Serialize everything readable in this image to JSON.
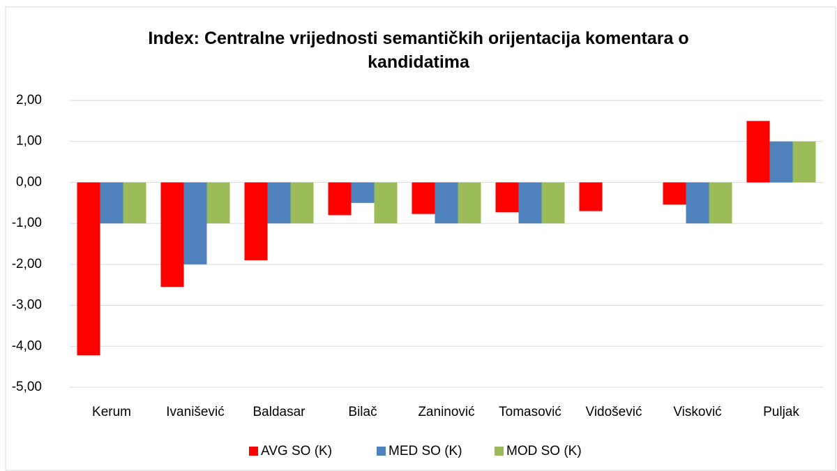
{
  "chart_data": {
    "type": "bar",
    "title": "Index: Centralne vrijednosti semantičkih orijentacija komentara o kandidatima",
    "categories": [
      "Kerum",
      "Ivanišević",
      "Baldasar",
      "Bilač",
      "Zaninović",
      "Tomasović",
      "Vidošević",
      "Visković",
      "Puljak"
    ],
    "series": [
      {
        "name": "AVG SO (K)",
        "color": "#ff0000",
        "values": [
          -4.22,
          -2.55,
          -1.9,
          -0.8,
          -0.77,
          -0.73,
          -0.7,
          -0.54,
          1.5
        ]
      },
      {
        "name": "MED SO (K)",
        "color": "#4f81bd",
        "values": [
          -1,
          -2,
          -1,
          -0.5,
          -1,
          -1,
          0,
          -1,
          1
        ]
      },
      {
        "name": "MOD SO (K)",
        "color": "#9bbb59",
        "values": [
          -1,
          -1,
          -1,
          -1,
          -1,
          -1,
          0,
          -1,
          1
        ]
      }
    ],
    "ylim": [
      -5,
      2
    ],
    "yticks": [
      {
        "value": -5,
        "label": "-5,00"
      },
      {
        "value": -4,
        "label": "-4,00"
      },
      {
        "value": -3,
        "label": "-3,00"
      },
      {
        "value": -2,
        "label": "-2,00"
      },
      {
        "value": -1,
        "label": "-1,00"
      },
      {
        "value": 0,
        "label": "0,00"
      },
      {
        "value": 1,
        "label": "1,00"
      },
      {
        "value": 2,
        "label": "2,00"
      }
    ],
    "grid": true,
    "legend": "bottom"
  }
}
